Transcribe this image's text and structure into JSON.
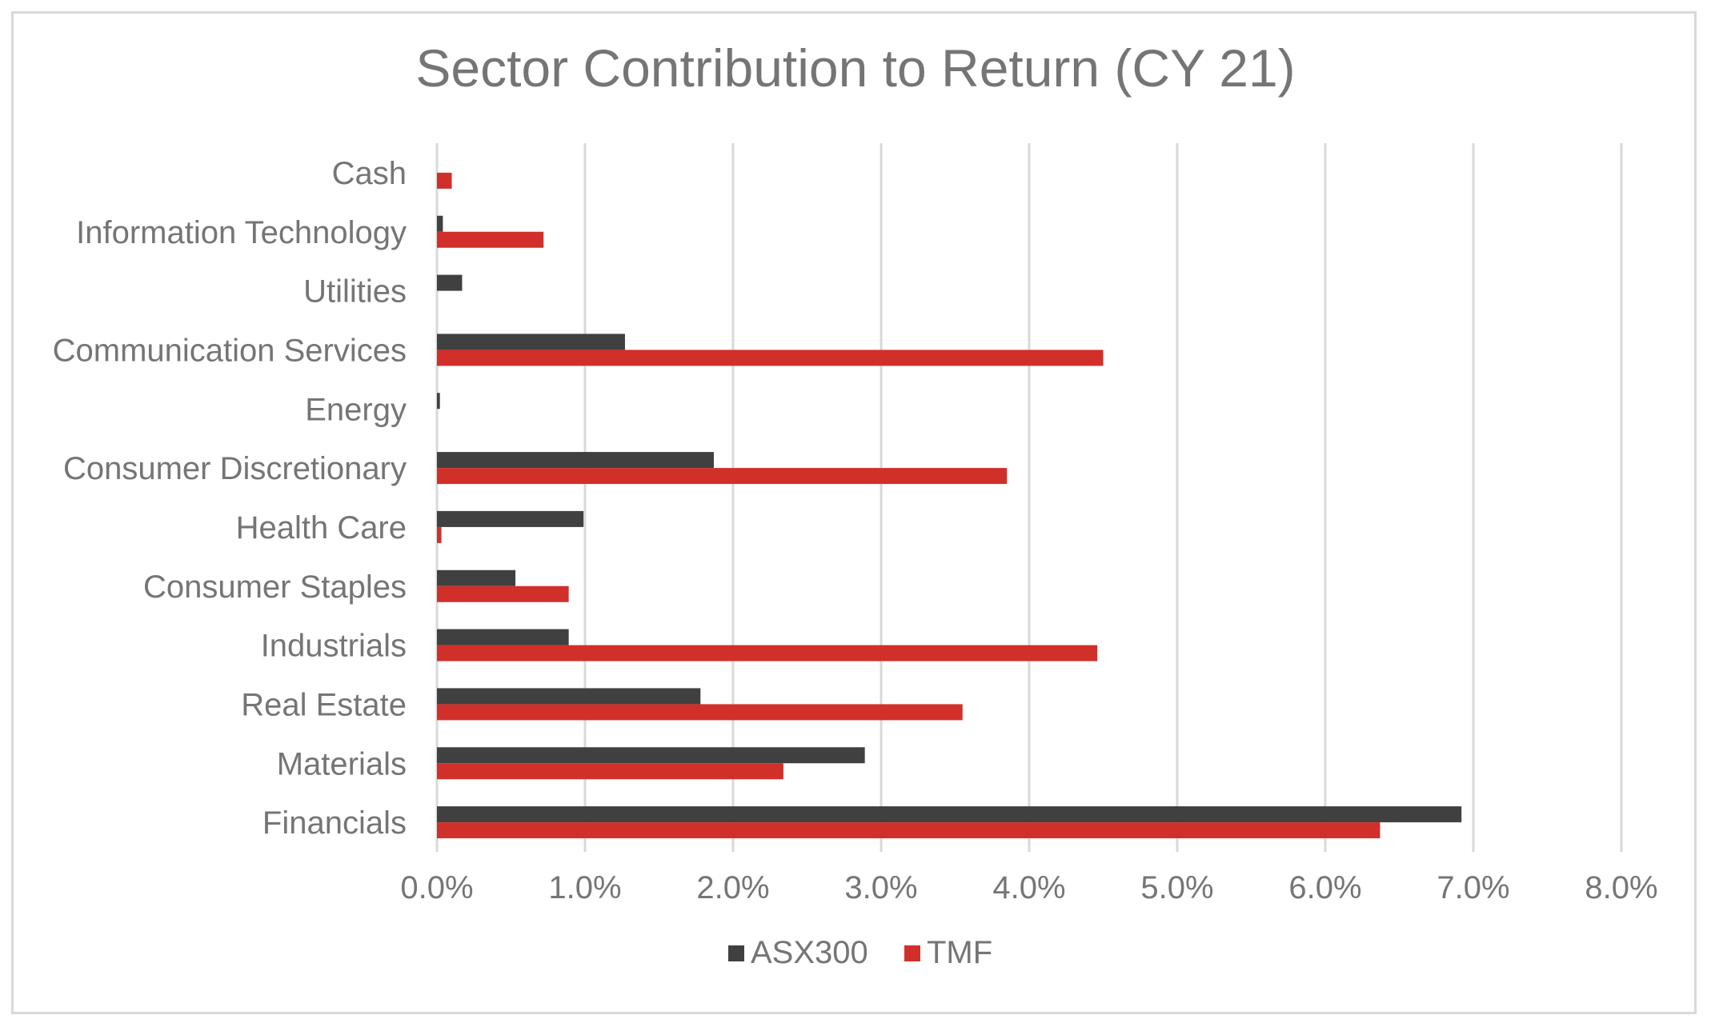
{
  "chart_data": {
    "type": "bar",
    "orientation": "horizontal",
    "title": "Sector Contribution to Return (CY 21)",
    "categories": [
      "Cash",
      "Information Technology",
      "Utilities",
      "Communication Services",
      "Energy",
      "Consumer Discretionary",
      "Health Care",
      "Consumer Staples",
      "Industrials",
      "Real Estate",
      "Materials",
      "Financials"
    ],
    "series": [
      {
        "name": "ASX300",
        "color": "#404040",
        "values": [
          0.0,
          0.04,
          0.17,
          1.27,
          0.02,
          1.87,
          0.99,
          0.53,
          0.89,
          1.78,
          2.89,
          6.92
        ]
      },
      {
        "name": "TMF",
        "color": "#d12f2a",
        "values": [
          0.1,
          0.72,
          0.0,
          4.5,
          0.0,
          3.85,
          0.03,
          0.89,
          4.46,
          3.55,
          2.34,
          6.37
        ]
      }
    ],
    "xlim": [
      0,
      8
    ],
    "xticks": [
      0,
      1,
      2,
      3,
      4,
      5,
      6,
      7,
      8
    ],
    "tick_labels": [
      "0.0%",
      "1.0%",
      "2.0%",
      "3.0%",
      "4.0%",
      "5.0%",
      "6.0%",
      "7.0%",
      "8.0%"
    ],
    "xlabel": "",
    "ylabel": "",
    "grid": "vertical",
    "legend": "bottom"
  }
}
